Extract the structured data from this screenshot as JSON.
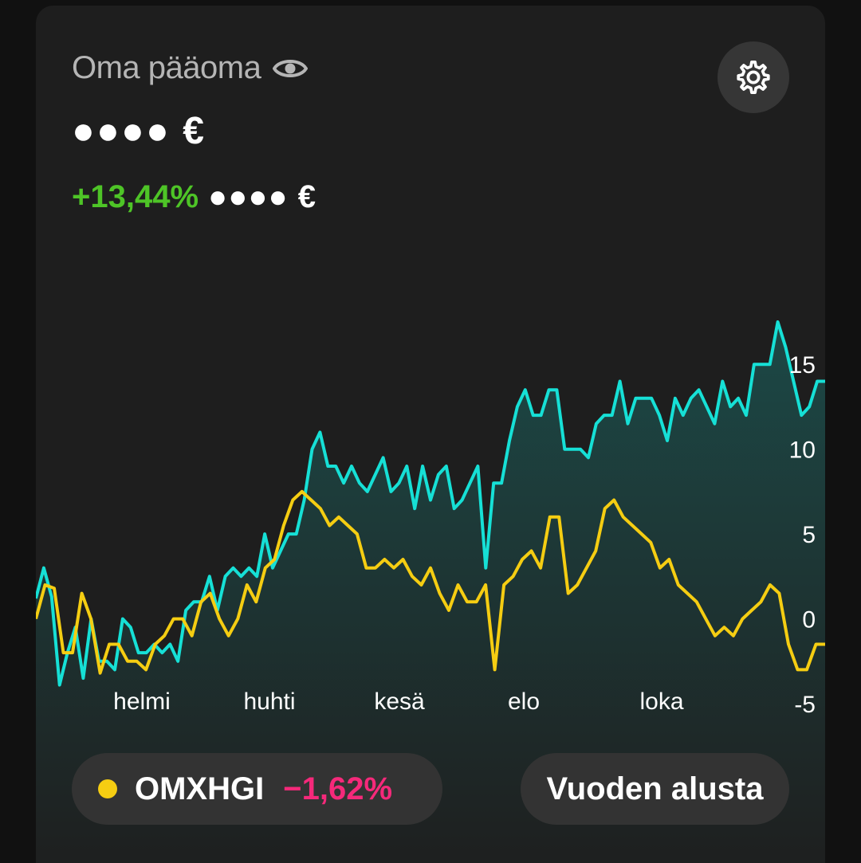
{
  "header": {
    "title": "Oma pääoma",
    "balance_masked": "●●●● €",
    "change_percent": "+13,44%",
    "change_amount_masked": "●●●● €"
  },
  "colors": {
    "portfolio_line": "#16e0d6",
    "benchmark_line": "#f5cd12",
    "positive": "#4ec427",
    "negative": "#f5297a"
  },
  "icons": {
    "visibility": "eye-icon",
    "settings": "gear-icon"
  },
  "chart_data": {
    "type": "line",
    "x_tick_labels": [
      "helmi",
      "huhti",
      "kesä",
      "elo",
      "loka"
    ],
    "y_ticks": [
      "15",
      "10",
      "5",
      "0",
      "-5"
    ],
    "ylim": [
      -5,
      17.5
    ],
    "series": [
      {
        "name": "",
        "color": "#16e0d6",
        "values": [
          1.2,
          3,
          1.3,
          -3.9,
          -2,
          -0.5,
          -3.5,
          0,
          -2.5,
          -2.5,
          -3,
          0,
          -0.5,
          -2,
          -2,
          -1.5,
          -2,
          -1.5,
          -2.5,
          0.5,
          1,
          1,
          2.5,
          0.5,
          2.5,
          3,
          2.5,
          3,
          2.5,
          5,
          3,
          4,
          5,
          5,
          7,
          10,
          11,
          9,
          9,
          8,
          9,
          8,
          7.5,
          8.5,
          9.5,
          7.5,
          8,
          9,
          6.5,
          9,
          7,
          8.5,
          9,
          6.5,
          7,
          8,
          9,
          3,
          8,
          8,
          10.5,
          12.5,
          13.5,
          12,
          12,
          13.5,
          13.5,
          10,
          10,
          10,
          9.5,
          11.5,
          12,
          12,
          14,
          11.5,
          13,
          13,
          13,
          12,
          10.5,
          13,
          12,
          13,
          13.5,
          12.5,
          11.5,
          14,
          12.5,
          13,
          12,
          15,
          15,
          15,
          17.5,
          16,
          14,
          12,
          12.5,
          14,
          14
        ]
      },
      {
        "name": "OMXHGI",
        "color": "#f5cd12",
        "values": [
          0,
          2,
          1.8,
          -2,
          -2,
          1.5,
          0,
          -3.2,
          -1.5,
          -1.5,
          -2.5,
          -2.5,
          -3,
          -1.5,
          -1,
          0,
          0,
          -1,
          1,
          1.5,
          0,
          -1,
          0,
          2,
          1,
          3,
          3.5,
          5.5,
          7,
          7.5,
          7,
          6.5,
          5.5,
          6,
          5.5,
          5,
          3,
          3,
          3.5,
          3,
          3.5,
          2.5,
          2,
          3,
          1.5,
          0.5,
          2,
          1,
          1,
          2,
          -3,
          2,
          2.5,
          3.5,
          4,
          3,
          6,
          6,
          1.5,
          2,
          3,
          4,
          6.5,
          7,
          6,
          5.5,
          5,
          4.5,
          3,
          3.5,
          2,
          1.5,
          1,
          0,
          -1,
          -0.5,
          -1,
          0,
          0.5,
          1,
          2,
          1.5,
          -1.5,
          -3,
          -3,
          -1.5,
          -1.5
        ]
      }
    ]
  },
  "benchmark": {
    "name": "OMXHGI",
    "change": "−1,62%"
  },
  "period_button": {
    "label": "Vuoden alusta"
  }
}
